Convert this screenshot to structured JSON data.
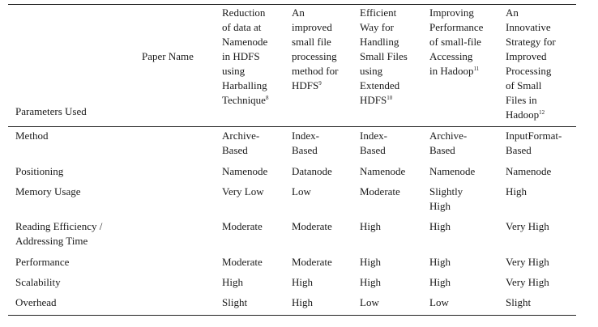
{
  "table": {
    "corner_label": "Parameters Used",
    "paper_name_label": "Paper Name",
    "papers": [
      {
        "lines": [
          "Reduction",
          "of data at",
          "Namenode",
          "in HDFS",
          "using",
          "Harballing",
          "Technique"
        ],
        "ref": "8"
      },
      {
        "lines": [
          "An",
          "improved",
          "small file",
          "processing",
          "method for",
          "HDFS"
        ],
        "ref": "9"
      },
      {
        "lines": [
          "Efficient",
          "Way for",
          "Handling",
          "Small Files",
          "using",
          "Extended",
          "HDFS"
        ],
        "ref": "10"
      },
      {
        "lines": [
          "Improving",
          "Performance",
          "of small-file",
          "Accessing",
          "in Hadoop"
        ],
        "ref": "11"
      },
      {
        "lines": [
          "An",
          "Innovative",
          "Strategy for",
          "Improved",
          "Processing",
          "of Small",
          "Files in",
          "Hadoop"
        ],
        "ref": "12"
      }
    ],
    "rows": [
      {
        "param": [
          "Method"
        ],
        "values": [
          [
            "Archive-",
            "Based"
          ],
          [
            "Index-",
            "Based"
          ],
          [
            "Index-",
            "Based"
          ],
          [
            "Archive-",
            "Based"
          ],
          [
            "InputFormat-",
            "Based"
          ]
        ]
      },
      {
        "param": [
          "Positioning"
        ],
        "values": [
          [
            "Namenode"
          ],
          [
            "Datanode"
          ],
          [
            "Namenode"
          ],
          [
            "Namenode"
          ],
          [
            "Namenode"
          ]
        ]
      },
      {
        "param": [
          "Memory Usage"
        ],
        "values": [
          [
            "Very Low"
          ],
          [
            "Low"
          ],
          [
            "Moderate"
          ],
          [
            "Slightly",
            "High"
          ],
          [
            "High"
          ]
        ]
      },
      {
        "param": [
          "Reading Efficiency /",
          "Addressing Time"
        ],
        "values": [
          [
            "Moderate"
          ],
          [
            "Moderate"
          ],
          [
            "High"
          ],
          [
            "High"
          ],
          [
            "Very High"
          ]
        ]
      },
      {
        "param": [
          "Performance"
        ],
        "values": [
          [
            "Moderate"
          ],
          [
            "Moderate"
          ],
          [
            "High"
          ],
          [
            "High"
          ],
          [
            "Very High"
          ]
        ]
      },
      {
        "param": [
          "Scalability"
        ],
        "values": [
          [
            "High"
          ],
          [
            "High"
          ],
          [
            "High"
          ],
          [
            "High"
          ],
          [
            "Very High"
          ]
        ]
      },
      {
        "param": [
          "Overhead"
        ],
        "values": [
          [
            "Slight"
          ],
          [
            "High"
          ],
          [
            "Low"
          ],
          [
            "Low"
          ],
          [
            "Slight"
          ]
        ]
      }
    ]
  }
}
